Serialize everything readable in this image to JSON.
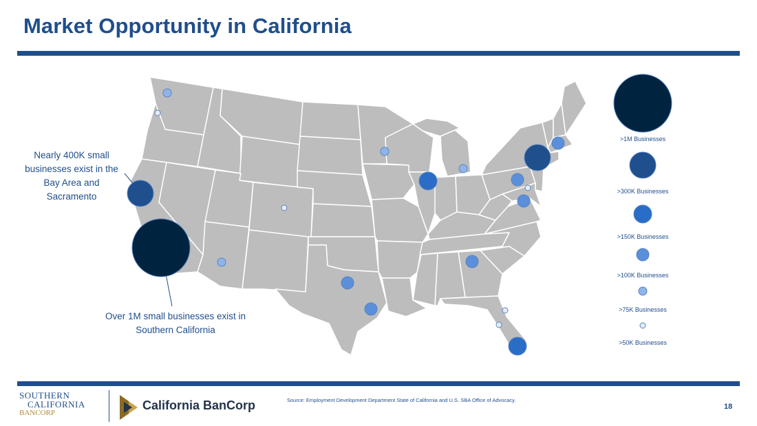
{
  "header": {
    "title": "Market Opportunity in California"
  },
  "annotations": {
    "bay_area": "Nearly 400K small businesses exist in the Bay Area and Sacramento",
    "southern_california": "Over 1M small businesses exist in Southern California"
  },
  "legend": [
    {
      "label": ">1M Businesses",
      "color": "#00243f"
    },
    {
      "label": ">300K Businesses",
      "color": "#1f4f8d"
    },
    {
      "label": ">150K Businesses",
      "color": "#2a6dc6"
    },
    {
      "label": ">100K Businesses",
      "color": "#5b8fd9"
    },
    {
      "label": ">75K Businesses",
      "color": "#8fb4e8"
    },
    {
      "label": ">50K Businesses",
      "color": "#e3ecf8"
    }
  ],
  "markers": [
    {
      "region": "Southern California",
      "tier": 0
    },
    {
      "region": "Bay Area and Sacramento",
      "tier": 1
    },
    {
      "region": "New York",
      "tier": 1
    },
    {
      "region": "Chicago",
      "tier": 2
    },
    {
      "region": "Miami",
      "tier": 2
    },
    {
      "region": "Philadelphia",
      "tier": 3
    },
    {
      "region": "Washington DC",
      "tier": 3
    },
    {
      "region": "Boston",
      "tier": 3
    },
    {
      "region": "Atlanta",
      "tier": 3
    },
    {
      "region": "Dallas",
      "tier": 3
    },
    {
      "region": "Houston",
      "tier": 3
    },
    {
      "region": "Seattle",
      "tier": 4
    },
    {
      "region": "Phoenix",
      "tier": 4
    },
    {
      "region": "Minneapolis",
      "tier": 4
    },
    {
      "region": "Detroit",
      "tier": 4
    },
    {
      "region": "Portland",
      "tier": 5
    },
    {
      "region": "Denver",
      "tier": 5
    },
    {
      "region": "Baltimore",
      "tier": 5
    },
    {
      "region": "Orlando",
      "tier": 5
    },
    {
      "region": "Tampa",
      "tier": 5
    }
  ],
  "footer": {
    "source": "Source: Employment Development Department State of California and U.S. SBA Office of Advocacy.",
    "page_number": "18",
    "logo_southern_california_bancorp": [
      "SOUTHERN",
      "CALIFORNIA",
      "BANCORP"
    ],
    "logo_california_bancorp": "California BanCorp"
  }
}
